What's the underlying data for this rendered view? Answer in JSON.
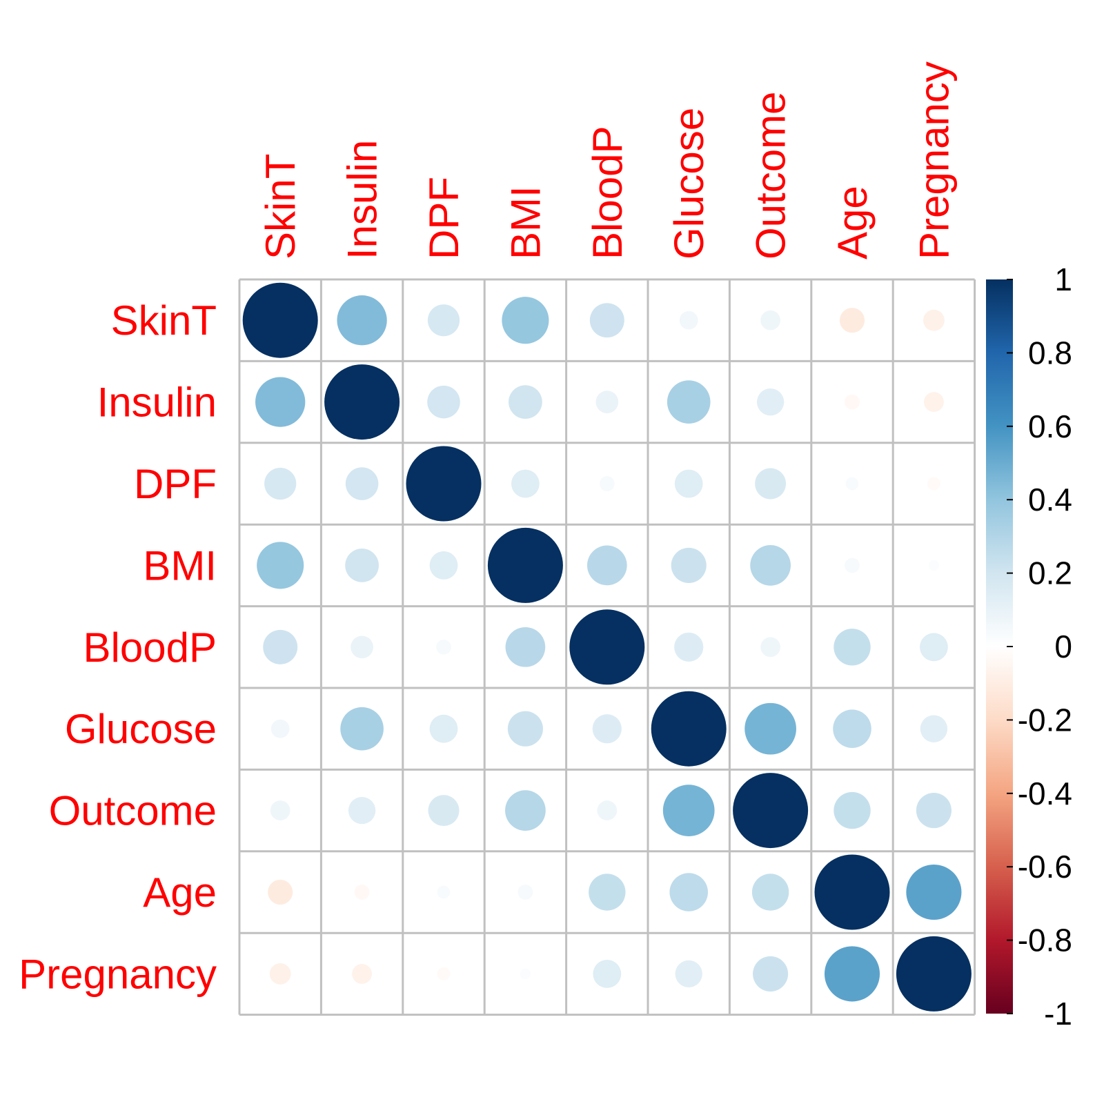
{
  "chart_data": {
    "type": "heatmap",
    "style": "corrplot-circle",
    "variables": [
      "SkinT",
      "Insulin",
      "DPF",
      "BMI",
      "BloodP",
      "Glucose",
      "Outcome",
      "Age",
      "Pregnancy"
    ],
    "matrix": [
      [
        1.0,
        0.44,
        0.18,
        0.39,
        0.21,
        0.06,
        0.07,
        -0.11,
        -0.08
      ],
      [
        0.44,
        1.0,
        0.19,
        0.2,
        0.09,
        0.33,
        0.13,
        -0.04,
        -0.07
      ],
      [
        0.18,
        0.19,
        1.0,
        0.14,
        0.04,
        0.14,
        0.17,
        0.03,
        -0.03
      ],
      [
        0.39,
        0.2,
        0.14,
        1.0,
        0.28,
        0.22,
        0.29,
        0.04,
        0.02
      ],
      [
        0.21,
        0.09,
        0.04,
        0.28,
        1.0,
        0.15,
        0.07,
        0.24,
        0.14
      ],
      [
        0.06,
        0.33,
        0.14,
        0.22,
        0.15,
        1.0,
        0.47,
        0.26,
        0.13
      ],
      [
        0.07,
        0.13,
        0.17,
        0.29,
        0.07,
        0.47,
        1.0,
        0.24,
        0.22
      ],
      [
        -0.11,
        -0.04,
        0.03,
        0.04,
        0.24,
        0.26,
        0.24,
        1.0,
        0.54
      ],
      [
        -0.08,
        -0.07,
        -0.03,
        0.02,
        0.14,
        0.13,
        0.22,
        0.54,
        1.0
      ]
    ],
    "colorbar": {
      "min": -1,
      "max": 1,
      "ticks": [
        "1",
        "0.8",
        "0.6",
        "0.4",
        "0.2",
        "0",
        "-0.2",
        "-0.4",
        "-0.6",
        "-0.8",
        "-1"
      ]
    },
    "colors": {
      "label": "#ff0000",
      "grid": "#c0c0c0",
      "scale": [
        "#67001f",
        "#b2182b",
        "#d6604d",
        "#f4a582",
        "#fddbc7",
        "#ffffff",
        "#d1e5f0",
        "#92c5de",
        "#4393c3",
        "#2166ac",
        "#053061"
      ]
    }
  }
}
